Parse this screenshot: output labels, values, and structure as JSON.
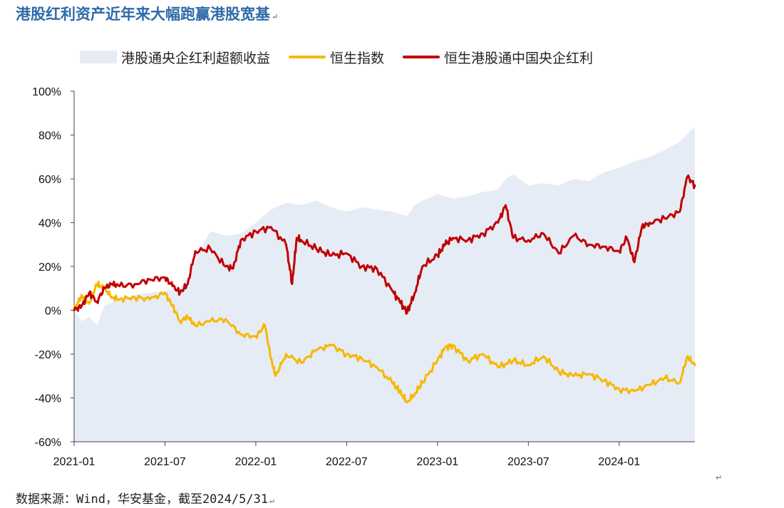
{
  "title": "港股红利资产近年来大幅跑赢港股宽基",
  "para_mark": "↵",
  "source": "数据来源：Wind，华安基金，截至2024/5/31",
  "colors": {
    "excess": "#e6ecf5",
    "hsi": "#f5b800",
    "soe": "#c00000",
    "axis": "#444444"
  },
  "chart_data": {
    "type": "line",
    "title": "港股红利资产近年来大幅跑赢港股宽基",
    "xlabel": "",
    "ylabel": "",
    "ylim": [
      -60,
      100
    ],
    "yticks": [
      "100%",
      "80%",
      "60%",
      "40%",
      "20%",
      "0%",
      "-20%",
      "-40%",
      "-60%"
    ],
    "ytick_values": [
      100,
      80,
      60,
      40,
      20,
      0,
      -20,
      -40,
      -60
    ],
    "xticks": [
      "2021-01",
      "2021-07",
      "2022-01",
      "2022-07",
      "2023-01",
      "2023-07",
      "2024-01"
    ],
    "xtick_values": [
      0,
      6,
      12,
      18,
      24,
      30,
      36
    ],
    "xlim": [
      0,
      41
    ],
    "legend_position": "top",
    "series": [
      {
        "name": "港股通央企红利超额收益",
        "kind": "area",
        "x": [
          0,
          0.5,
          1,
          1.5,
          2,
          3,
          4,
          5,
          6,
          7,
          7.5,
          8,
          8.5,
          9,
          10,
          11,
          12,
          13,
          14,
          15,
          16,
          17,
          18,
          19,
          20,
          21,
          22,
          22.5,
          23,
          24,
          25,
          26,
          27,
          28,
          28.5,
          29,
          30,
          31,
          32,
          33,
          34,
          35,
          36,
          37,
          38,
          39,
          40,
          41
        ],
        "values": [
          0,
          -5,
          -3,
          -7,
          2,
          5,
          7,
          8,
          9,
          10,
          15,
          22,
          30,
          36,
          34,
          35,
          40,
          46,
          49,
          48,
          50,
          47,
          45,
          47,
          46,
          45,
          43,
          48,
          50,
          53,
          51,
          52,
          54,
          55,
          60,
          62,
          57,
          58,
          57,
          60,
          59,
          63,
          65,
          68,
          70,
          73,
          77,
          84
        ]
      },
      {
        "name": "恒生指数",
        "kind": "line",
        "x": [
          0,
          0.5,
          1,
          1.5,
          2,
          2.5,
          3,
          4,
          5,
          6,
          6.5,
          7,
          7.5,
          8,
          9,
          10,
          11,
          12,
          12.6,
          13,
          13.3,
          14,
          15,
          16,
          17,
          18,
          19,
          20,
          21,
          21.5,
          22,
          22.5,
          23,
          24,
          24.5,
          25,
          26,
          27,
          28,
          29,
          30,
          31,
          32,
          33,
          34,
          35,
          36,
          37,
          38,
          39,
          40,
          40.5,
          41
        ],
        "values": [
          0,
          7,
          3,
          12,
          10,
          6,
          5,
          6,
          5,
          8,
          2,
          -5,
          -3,
          -7,
          -5,
          -4,
          -11,
          -12,
          -7,
          -22,
          -30,
          -20,
          -24,
          -18,
          -16,
          -20,
          -22,
          -26,
          -33,
          -37,
          -42,
          -38,
          -33,
          -23,
          -17,
          -16,
          -23,
          -20,
          -26,
          -23,
          -25,
          -21,
          -28,
          -30,
          -29,
          -32,
          -36,
          -37,
          -34,
          -31,
          -33,
          -21,
          -25
        ]
      },
      {
        "name": "恒生港股通中国央企红利",
        "kind": "line",
        "x": [
          0,
          0.5,
          1,
          1.5,
          2,
          2.5,
          3,
          4,
          5,
          6,
          6.5,
          7,
          7.5,
          8,
          9,
          10,
          10.5,
          11,
          12,
          13,
          14,
          14.4,
          14.7,
          15,
          16,
          17,
          18,
          19,
          20,
          21,
          21.5,
          22,
          22.5,
          23,
          24,
          24.5,
          25,
          26,
          27,
          28,
          28.5,
          29,
          30,
          31,
          32,
          33,
          34,
          35,
          36,
          36.5,
          37,
          37.5,
          38,
          39,
          40,
          40.5,
          41
        ],
        "values": [
          0,
          2,
          8,
          4,
          10,
          12,
          11,
          12,
          14,
          15,
          11,
          8,
          12,
          27,
          28,
          20,
          19,
          32,
          36,
          38,
          30,
          12,
          33,
          32,
          28,
          25,
          26,
          20,
          19,
          9,
          4,
          -1,
          8,
          20,
          25,
          30,
          33,
          32,
          35,
          40,
          48,
          33,
          32,
          35,
          26,
          34,
          30,
          29,
          27,
          33,
          22,
          38,
          40,
          42,
          45,
          61,
          57
        ]
      }
    ]
  }
}
